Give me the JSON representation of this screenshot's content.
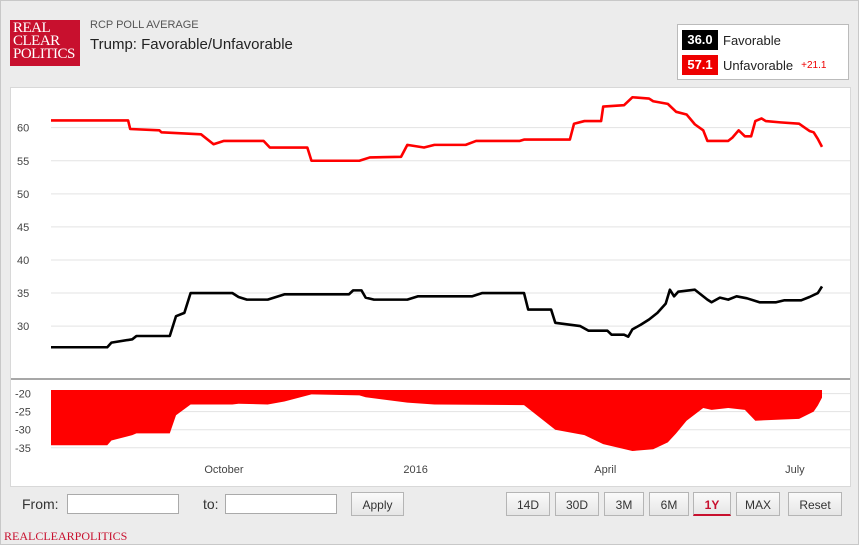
{
  "header": {
    "logo_lines": [
      "REAL",
      "CLEAR",
      "POLITICS"
    ],
    "subtitle": "RCP POLL AVERAGE",
    "title": "Trump: Favorable/Unfavorable"
  },
  "legend": {
    "favorable": {
      "value": "36.0",
      "label": "Favorable",
      "color": "#000000"
    },
    "unfavorable": {
      "value": "57.1",
      "label": "Unfavorable",
      "color": "#ff0000",
      "diff": "+21.1"
    }
  },
  "chart_data": [
    {
      "type": "line",
      "x_ticks": [
        "October",
        "2016",
        "April",
        "July"
      ],
      "ylim": [
        22,
        66
      ],
      "y_ticks": [
        30,
        35,
        40,
        45,
        50,
        55,
        60
      ],
      "grid": true,
      "series": [
        {
          "name": "Unfavorable",
          "color": "#ff0000",
          "points": [
            [
              "Jul 10",
              61.1
            ],
            [
              "Aug 16",
              61.1
            ],
            [
              "Aug 17",
              59.8
            ],
            [
              "Aug 31",
              59.6
            ],
            [
              "Sep 1",
              59.3
            ],
            [
              "Sep 20",
              59.0
            ],
            [
              "Sep 26",
              57.5
            ],
            [
              "Oct 1",
              58.0
            ],
            [
              "Oct 20",
              58.0
            ],
            [
              "Oct 23",
              57.0
            ],
            [
              "Nov 10",
              57.0
            ],
            [
              "Nov 12",
              55.0
            ],
            [
              "Dec 5",
              55.0
            ],
            [
              "Dec 10",
              55.5
            ],
            [
              "Dec 25",
              55.6
            ],
            [
              "Dec 28",
              57.4
            ],
            [
              "Jan 5",
              57.0
            ],
            [
              "Jan 10",
              57.4
            ],
            [
              "Jan 25",
              57.4
            ],
            [
              "Jan 30",
              58.0
            ],
            [
              "Feb 20",
              58.0
            ],
            [
              "Feb 22",
              58.2
            ],
            [
              "Mar 15",
              58.2
            ],
            [
              "Mar 17",
              60.6
            ],
            [
              "Mar 22",
              61.0
            ],
            [
              "Mar 30",
              61.0
            ],
            [
              "Mar 31",
              63.2
            ],
            [
              "Apr 10",
              63.4
            ],
            [
              "Apr 14",
              64.6
            ],
            [
              "Apr 22",
              64.4
            ],
            [
              "Apr 24",
              64.0
            ],
            [
              "May 1",
              63.6
            ],
            [
              "May 5",
              62.4
            ],
            [
              "May 10",
              62.0
            ],
            [
              "May 14",
              60.5
            ],
            [
              "May 18",
              59.6
            ],
            [
              "May 20",
              58.0
            ],
            [
              "May 30",
              58.0
            ],
            [
              "Jun 1",
              58.5
            ],
            [
              "Jun 4",
              59.6
            ],
            [
              "Jun 7",
              58.7
            ],
            [
              "Jun 10",
              58.7
            ],
            [
              "Jun 12",
              61.0
            ],
            [
              "Jun 15",
              61.4
            ],
            [
              "Jun 17",
              61.0
            ],
            [
              "Jun 24",
              60.8
            ],
            [
              "Jul 3",
              60.6
            ],
            [
              "Jul 8",
              59.5
            ],
            [
              "Jul 10",
              59.3
            ],
            [
              "Jul 12",
              58.3
            ],
            [
              "Jul 14",
              57.1
            ]
          ]
        },
        {
          "name": "Favorable",
          "color": "#000000",
          "points": [
            [
              "Jul 10",
              26.8
            ],
            [
              "Aug 6",
              26.8
            ],
            [
              "Aug 8",
              27.5
            ],
            [
              "Aug 18",
              28.0
            ],
            [
              "Aug 20",
              28.5
            ],
            [
              "Sep 5",
              28.5
            ],
            [
              "Sep 8",
              31.5
            ],
            [
              "Sep 12",
              32.0
            ],
            [
              "Sep 15",
              35.0
            ],
            [
              "Oct 5",
              35.0
            ],
            [
              "Oct 8",
              34.4
            ],
            [
              "Oct 12",
              34.0
            ],
            [
              "Oct 22",
              34.0
            ],
            [
              "Oct 30",
              34.8
            ],
            [
              "Nov 30",
              34.8
            ],
            [
              "Dec 2",
              35.4
            ],
            [
              "Dec 6",
              35.4
            ],
            [
              "Dec 8",
              34.3
            ],
            [
              "Dec 12",
              34.0
            ],
            [
              "Dec 28",
              34.0
            ],
            [
              "Jan 2",
              34.5
            ],
            [
              "Jan 28",
              34.5
            ],
            [
              "Feb 2",
              35.0
            ],
            [
              "Feb 22",
              35.0
            ],
            [
              "Feb 24",
              32.5
            ],
            [
              "Mar 6",
              32.5
            ],
            [
              "Mar 8",
              30.5
            ],
            [
              "Mar 20",
              30.0
            ],
            [
              "Mar 24",
              29.3
            ],
            [
              "Apr 2",
              29.3
            ],
            [
              "Apr 4",
              28.7
            ],
            [
              "Apr 10",
              28.7
            ],
            [
              "Apr 12",
              28.4
            ],
            [
              "Apr 14",
              29.5
            ],
            [
              "Apr 18",
              30.2
            ],
            [
              "Apr 22",
              31.0
            ],
            [
              "Apr 26",
              32.0
            ],
            [
              "Apr 30",
              33.4
            ],
            [
              "May 2",
              35.5
            ],
            [
              "May 4",
              34.5
            ],
            [
              "May 6",
              35.2
            ],
            [
              "May 14",
              35.5
            ],
            [
              "May 20",
              34.0
            ],
            [
              "May 22",
              33.6
            ],
            [
              "May 26",
              34.3
            ],
            [
              "May 30",
              34.0
            ],
            [
              "Jun 3",
              34.5
            ],
            [
              "Jun 8",
              34.2
            ],
            [
              "Jun 14",
              33.6
            ],
            [
              "Jun 22",
              33.6
            ],
            [
              "Jun 26",
              33.9
            ],
            [
              "Jul 4",
              33.9
            ],
            [
              "Jul 8",
              34.4
            ],
            [
              "Jul 12",
              35.0
            ],
            [
              "Jul 14",
              36.0
            ]
          ]
        }
      ]
    },
    {
      "type": "area",
      "ylim": [
        -37,
        -19
      ],
      "y_ticks": [
        -20,
        -25,
        -30,
        -35
      ],
      "series": [
        {
          "name": "Spread",
          "color": "#ff0000",
          "points": [
            [
              "Jul 10",
              -34.3
            ],
            [
              "Aug 6",
              -34.3
            ],
            [
              "Aug 8",
              -33.0
            ],
            [
              "Aug 18",
              -31.5
            ],
            [
              "Aug 20",
              -31.0
            ],
            [
              "Sep 5",
              -31.0
            ],
            [
              "Sep 8",
              -26.0
            ],
            [
              "Sep 15",
              -23.0
            ],
            [
              "Oct 5",
              -23.0
            ],
            [
              "Oct 8",
              -22.8
            ],
            [
              "Oct 22",
              -23.0
            ],
            [
              "Oct 30",
              -22.2
            ],
            [
              "Nov 12",
              -20.2
            ],
            [
              "Dec 5",
              -20.5
            ],
            [
              "Dec 8",
              -21.0
            ],
            [
              "Dec 28",
              -22.5
            ],
            [
              "Jan 10",
              -23.0
            ],
            [
              "Feb 22",
              -23.2
            ],
            [
              "Mar 8",
              -30.0
            ],
            [
              "Mar 22",
              -31.5
            ],
            [
              "Mar 31",
              -34.0
            ],
            [
              "Apr 14",
              -35.9
            ],
            [
              "Apr 24",
              -35.4
            ],
            [
              "May 1",
              -33.5
            ],
            [
              "May 5",
              -31.0
            ],
            [
              "May 10",
              -27.5
            ],
            [
              "May 18",
              -24.0
            ],
            [
              "May 22",
              -24.5
            ],
            [
              "May 30",
              -24.0
            ],
            [
              "Jun 7",
              -24.5
            ],
            [
              "Jun 12",
              -27.5
            ],
            [
              "Jun 24",
              -27.2
            ],
            [
              "Jul 3",
              -27.0
            ],
            [
              "Jul 10",
              -25.0
            ],
            [
              "Jul 12",
              -23.3
            ],
            [
              "Jul 14",
              -21.1
            ]
          ]
        }
      ]
    }
  ],
  "controls": {
    "from_label": "From:",
    "to_label": "to:",
    "apply": "Apply",
    "ranges": [
      "14D",
      "30D",
      "3M",
      "6M",
      "1Y",
      "MAX"
    ],
    "active_range": "1Y",
    "reset": "Reset"
  },
  "footer": "REALCLEARPOLITICS"
}
